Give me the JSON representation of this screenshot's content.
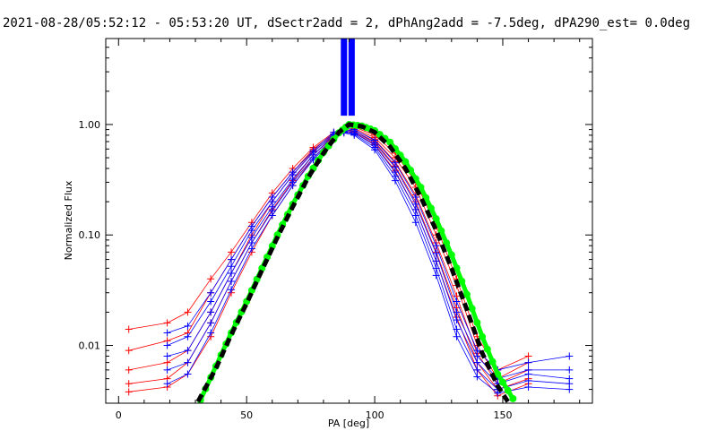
{
  "chart_data": {
    "type": "line",
    "title": "2021-08-28/05:52:12 - 05:53:20 UT, dSectr2add = 2, dPhAng2add = -7.5deg, dPA290_est=  0.0deg",
    "xlabel": "PA [deg]",
    "ylabel": "Normalized Flux",
    "xlim": [
      -5,
      185
    ],
    "ylim": [
      0.003,
      6.0
    ],
    "yscale": "log",
    "xticks": [
      0,
      50,
      100,
      150
    ],
    "xtick_labels": [
      "0",
      "50",
      "100",
      "150"
    ],
    "yticks": [
      0.01,
      0.1,
      1.0
    ],
    "ytick_labels": [
      "0.01",
      "0.10",
      "1.00"
    ],
    "grid": false,
    "legend": "none",
    "colors": {
      "red_series": "#ff0000",
      "blue_series": "#0000ff",
      "green_model": "#00ff00",
      "black_model": "#000000",
      "axes": "#000000"
    },
    "model_curves": [
      {
        "name": "",
        "color": "#00ff00",
        "style": "filled-circles",
        "x": [
          32,
          38,
          44,
          50,
          56,
          62,
          68,
          74,
          80,
          86,
          90,
          95,
          100,
          106,
          112,
          118,
          124,
          130,
          136,
          142,
          148,
          154
        ],
        "y": [
          0.0032,
          0.0065,
          0.013,
          0.025,
          0.05,
          0.1,
          0.19,
          0.34,
          0.56,
          0.84,
          1.0,
          0.97,
          0.88,
          0.69,
          0.46,
          0.27,
          0.14,
          0.066,
          0.029,
          0.012,
          0.0055,
          0.0033
        ]
      },
      {
        "name": "",
        "color": "#000000",
        "style": "thick-dashed",
        "x": [
          31,
          38,
          44,
          50,
          56,
          62,
          68,
          74,
          80,
          86,
          90,
          95,
          100,
          106,
          112,
          118,
          124,
          130,
          136,
          142,
          148,
          152
        ],
        "y": [
          0.0031,
          0.0062,
          0.0125,
          0.024,
          0.048,
          0.095,
          0.18,
          0.33,
          0.55,
          0.85,
          1.0,
          0.96,
          0.85,
          0.63,
          0.4,
          0.22,
          0.11,
          0.05,
          0.021,
          0.0085,
          0.0043,
          0.0031
        ]
      }
    ],
    "vertical_bars": [
      {
        "name": "",
        "x": 88,
        "color": "#0000ff",
        "y_from": 1.2,
        "y_to": 6.0
      },
      {
        "name": "",
        "x": 91,
        "color": "#0000ff",
        "y_from": 1.2,
        "y_to": 6.0
      }
    ],
    "series_groups": [
      {
        "color": "#ff0000",
        "marker": "+",
        "x": [
          4,
          19,
          27,
          36,
          44,
          52,
          60,
          68,
          76,
          84,
          88,
          92,
          100,
          108,
          116,
          124,
          132,
          140,
          148,
          160
        ],
        "profiles": [
          [
            0.014,
            0.016,
            0.02,
            0.04,
            0.07,
            0.13,
            0.24,
            0.4,
            0.62,
            0.85,
            0.93,
            0.95,
            0.8,
            0.55,
            0.3,
            0.12,
            0.04,
            0.012,
            0.006,
            0.008
          ],
          [
            0.009,
            0.011,
            0.013,
            0.03,
            0.06,
            0.12,
            0.22,
            0.37,
            0.6,
            0.82,
            0.9,
            0.92,
            0.76,
            0.5,
            0.27,
            0.1,
            0.035,
            0.01,
            0.005,
            0.007
          ],
          [
            0.006,
            0.007,
            0.009,
            0.02,
            0.045,
            0.1,
            0.2,
            0.35,
            0.57,
            0.8,
            0.88,
            0.9,
            0.73,
            0.46,
            0.23,
            0.085,
            0.028,
            0.0085,
            0.0045,
            0.006
          ],
          [
            0.0045,
            0.005,
            0.007,
            0.016,
            0.038,
            0.085,
            0.17,
            0.31,
            0.53,
            0.78,
            0.86,
            0.87,
            0.7,
            0.42,
            0.2,
            0.07,
            0.022,
            0.007,
            0.004,
            0.005
          ],
          [
            0.0038,
            0.0042,
            0.0055,
            0.012,
            0.03,
            0.07,
            0.15,
            0.28,
            0.5,
            0.75,
            0.84,
            0.85,
            0.66,
            0.38,
            0.17,
            0.058,
            0.018,
            0.006,
            0.0035,
            0.0045
          ]
        ]
      },
      {
        "color": "#0000ff",
        "marker": "+",
        "x": [
          19,
          27,
          36,
          44,
          52,
          60,
          68,
          76,
          84,
          88,
          92,
          100,
          108,
          116,
          124,
          132,
          140,
          148,
          160,
          176
        ],
        "profiles": [
          [
            0.013,
            0.015,
            0.03,
            0.06,
            0.12,
            0.22,
            0.37,
            0.58,
            0.85,
            0.93,
            0.9,
            0.72,
            0.45,
            0.22,
            0.08,
            0.025,
            0.009,
            0.006,
            0.007,
            0.008
          ],
          [
            0.01,
            0.012,
            0.025,
            0.052,
            0.11,
            0.2,
            0.35,
            0.56,
            0.82,
            0.9,
            0.87,
            0.68,
            0.41,
            0.19,
            0.068,
            0.02,
            0.008,
            0.005,
            0.006,
            0.006
          ],
          [
            0.008,
            0.009,
            0.02,
            0.045,
            0.095,
            0.18,
            0.32,
            0.53,
            0.8,
            0.88,
            0.84,
            0.65,
            0.37,
            0.17,
            0.058,
            0.017,
            0.007,
            0.0045,
            0.0055,
            0.005
          ],
          [
            0.006,
            0.007,
            0.016,
            0.038,
            0.085,
            0.165,
            0.3,
            0.5,
            0.77,
            0.86,
            0.82,
            0.62,
            0.34,
            0.15,
            0.05,
            0.014,
            0.006,
            0.004,
            0.0048,
            0.0045
          ],
          [
            0.0045,
            0.0055,
            0.013,
            0.032,
            0.075,
            0.15,
            0.28,
            0.48,
            0.74,
            0.84,
            0.8,
            0.59,
            0.31,
            0.13,
            0.043,
            0.012,
            0.0052,
            0.0037,
            0.0042,
            0.004
          ]
        ]
      }
    ]
  }
}
